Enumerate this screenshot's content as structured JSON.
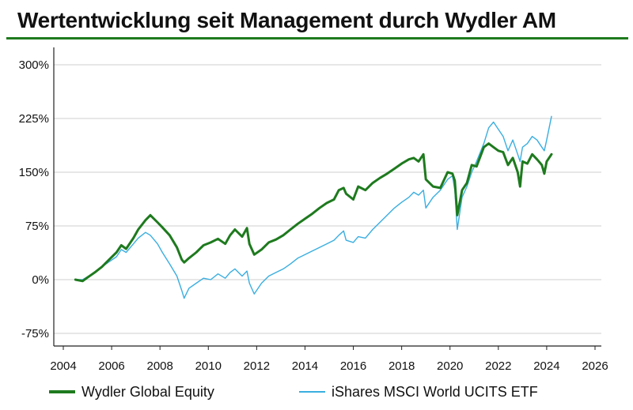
{
  "chart_data": {
    "type": "line",
    "title": "Wertentwicklung seit Management durch Wydler AM",
    "xlabel": "",
    "ylabel": "",
    "xlim": [
      2004,
      2026
    ],
    "ylim": [
      -90,
      315
    ],
    "x_ticks": [
      2004,
      2006,
      2008,
      2010,
      2012,
      2014,
      2016,
      2018,
      2020,
      2022,
      2024,
      2026
    ],
    "y_ticks": [
      -75,
      0,
      75,
      150,
      225,
      300
    ],
    "y_tick_labels": [
      "-75%",
      "0%",
      "75%",
      "150%",
      "225%",
      "300%"
    ],
    "grid": "horizontal",
    "legend_position": "bottom",
    "series": [
      {
        "name": "Wydler Global Equity",
        "color": "#1e7a1e",
        "x": [
          2004.5,
          2004.8,
          2005.0,
          2005.3,
          2005.6,
          2005.9,
          2006.2,
          2006.4,
          2006.6,
          2006.9,
          2007.1,
          2007.4,
          2007.6,
          2007.9,
          2008.1,
          2008.4,
          2008.7,
          2008.9,
          2009.0,
          2009.2,
          2009.5,
          2009.8,
          2010.1,
          2010.4,
          2010.7,
          2010.9,
          2011.1,
          2011.4,
          2011.6,
          2011.7,
          2011.9,
          2012.2,
          2012.5,
          2012.8,
          2013.1,
          2013.4,
          2013.7,
          2014.0,
          2014.3,
          2014.6,
          2014.9,
          2015.2,
          2015.4,
          2015.6,
          2015.7,
          2016.0,
          2016.2,
          2016.5,
          2016.8,
          2017.1,
          2017.4,
          2017.7,
          2018.0,
          2018.3,
          2018.5,
          2018.7,
          2018.9,
          2019.0,
          2019.3,
          2019.6,
          2019.9,
          2020.1,
          2020.2,
          2020.3,
          2020.5,
          2020.7,
          2020.9,
          2021.1,
          2021.4,
          2021.6,
          2021.8,
          2022.0,
          2022.2,
          2022.4,
          2022.6,
          2022.8,
          2022.9,
          2023.0,
          2023.2,
          2023.4,
          2023.6,
          2023.8,
          2023.9,
          2024.0,
          2024.2
        ],
        "values": [
          0,
          -2,
          3,
          10,
          18,
          28,
          38,
          48,
          43,
          58,
          70,
          83,
          90,
          80,
          73,
          62,
          45,
          28,
          24,
          30,
          38,
          48,
          52,
          57,
          50,
          62,
          70,
          60,
          72,
          50,
          35,
          42,
          52,
          56,
          62,
          70,
          78,
          85,
          92,
          100,
          107,
          112,
          125,
          128,
          120,
          112,
          130,
          125,
          135,
          142,
          148,
          155,
          162,
          168,
          170,
          165,
          175,
          140,
          130,
          128,
          150,
          148,
          138,
          90,
          125,
          135,
          160,
          158,
          185,
          190,
          185,
          180,
          178,
          160,
          170,
          150,
          130,
          165,
          162,
          175,
          168,
          160,
          148,
          165,
          175
        ]
      },
      {
        "name": "iShares MSCI World UCITS ETF",
        "color": "#3aaee0",
        "x": [
          2004.5,
          2004.8,
          2005.0,
          2005.3,
          2005.6,
          2005.9,
          2006.2,
          2006.4,
          2006.6,
          2006.9,
          2007.1,
          2007.4,
          2007.6,
          2007.9,
          2008.1,
          2008.4,
          2008.7,
          2008.9,
          2009.0,
          2009.2,
          2009.5,
          2009.8,
          2010.1,
          2010.4,
          2010.7,
          2010.9,
          2011.1,
          2011.4,
          2011.6,
          2011.7,
          2011.9,
          2012.2,
          2012.5,
          2012.8,
          2013.1,
          2013.4,
          2013.7,
          2014.0,
          2014.3,
          2014.6,
          2014.9,
          2015.2,
          2015.4,
          2015.6,
          2015.7,
          2016.0,
          2016.2,
          2016.5,
          2016.8,
          2017.1,
          2017.4,
          2017.7,
          2018.0,
          2018.3,
          2018.5,
          2018.7,
          2018.9,
          2019.0,
          2019.3,
          2019.6,
          2019.9,
          2020.1,
          2020.2,
          2020.3,
          2020.5,
          2020.7,
          2020.9,
          2021.1,
          2021.4,
          2021.6,
          2021.8,
          2022.0,
          2022.2,
          2022.4,
          2022.6,
          2022.8,
          2022.9,
          2023.0,
          2023.2,
          2023.4,
          2023.6,
          2023.8,
          2023.9,
          2024.0,
          2024.2
        ],
        "values": [
          0,
          0,
          4,
          10,
          18,
          25,
          32,
          42,
          38,
          50,
          58,
          66,
          62,
          50,
          38,
          22,
          5,
          -15,
          -26,
          -12,
          -5,
          2,
          0,
          8,
          2,
          10,
          15,
          5,
          12,
          -5,
          -20,
          -5,
          5,
          10,
          15,
          22,
          30,
          35,
          40,
          45,
          50,
          55,
          62,
          68,
          55,
          52,
          60,
          58,
          70,
          80,
          90,
          100,
          108,
          115,
          122,
          118,
          125,
          100,
          115,
          125,
          140,
          145,
          125,
          70,
          115,
          130,
          150,
          165,
          190,
          212,
          220,
          210,
          200,
          180,
          195,
          175,
          165,
          185,
          190,
          200,
          195,
          185,
          180,
          195,
          228
        ]
      }
    ]
  }
}
